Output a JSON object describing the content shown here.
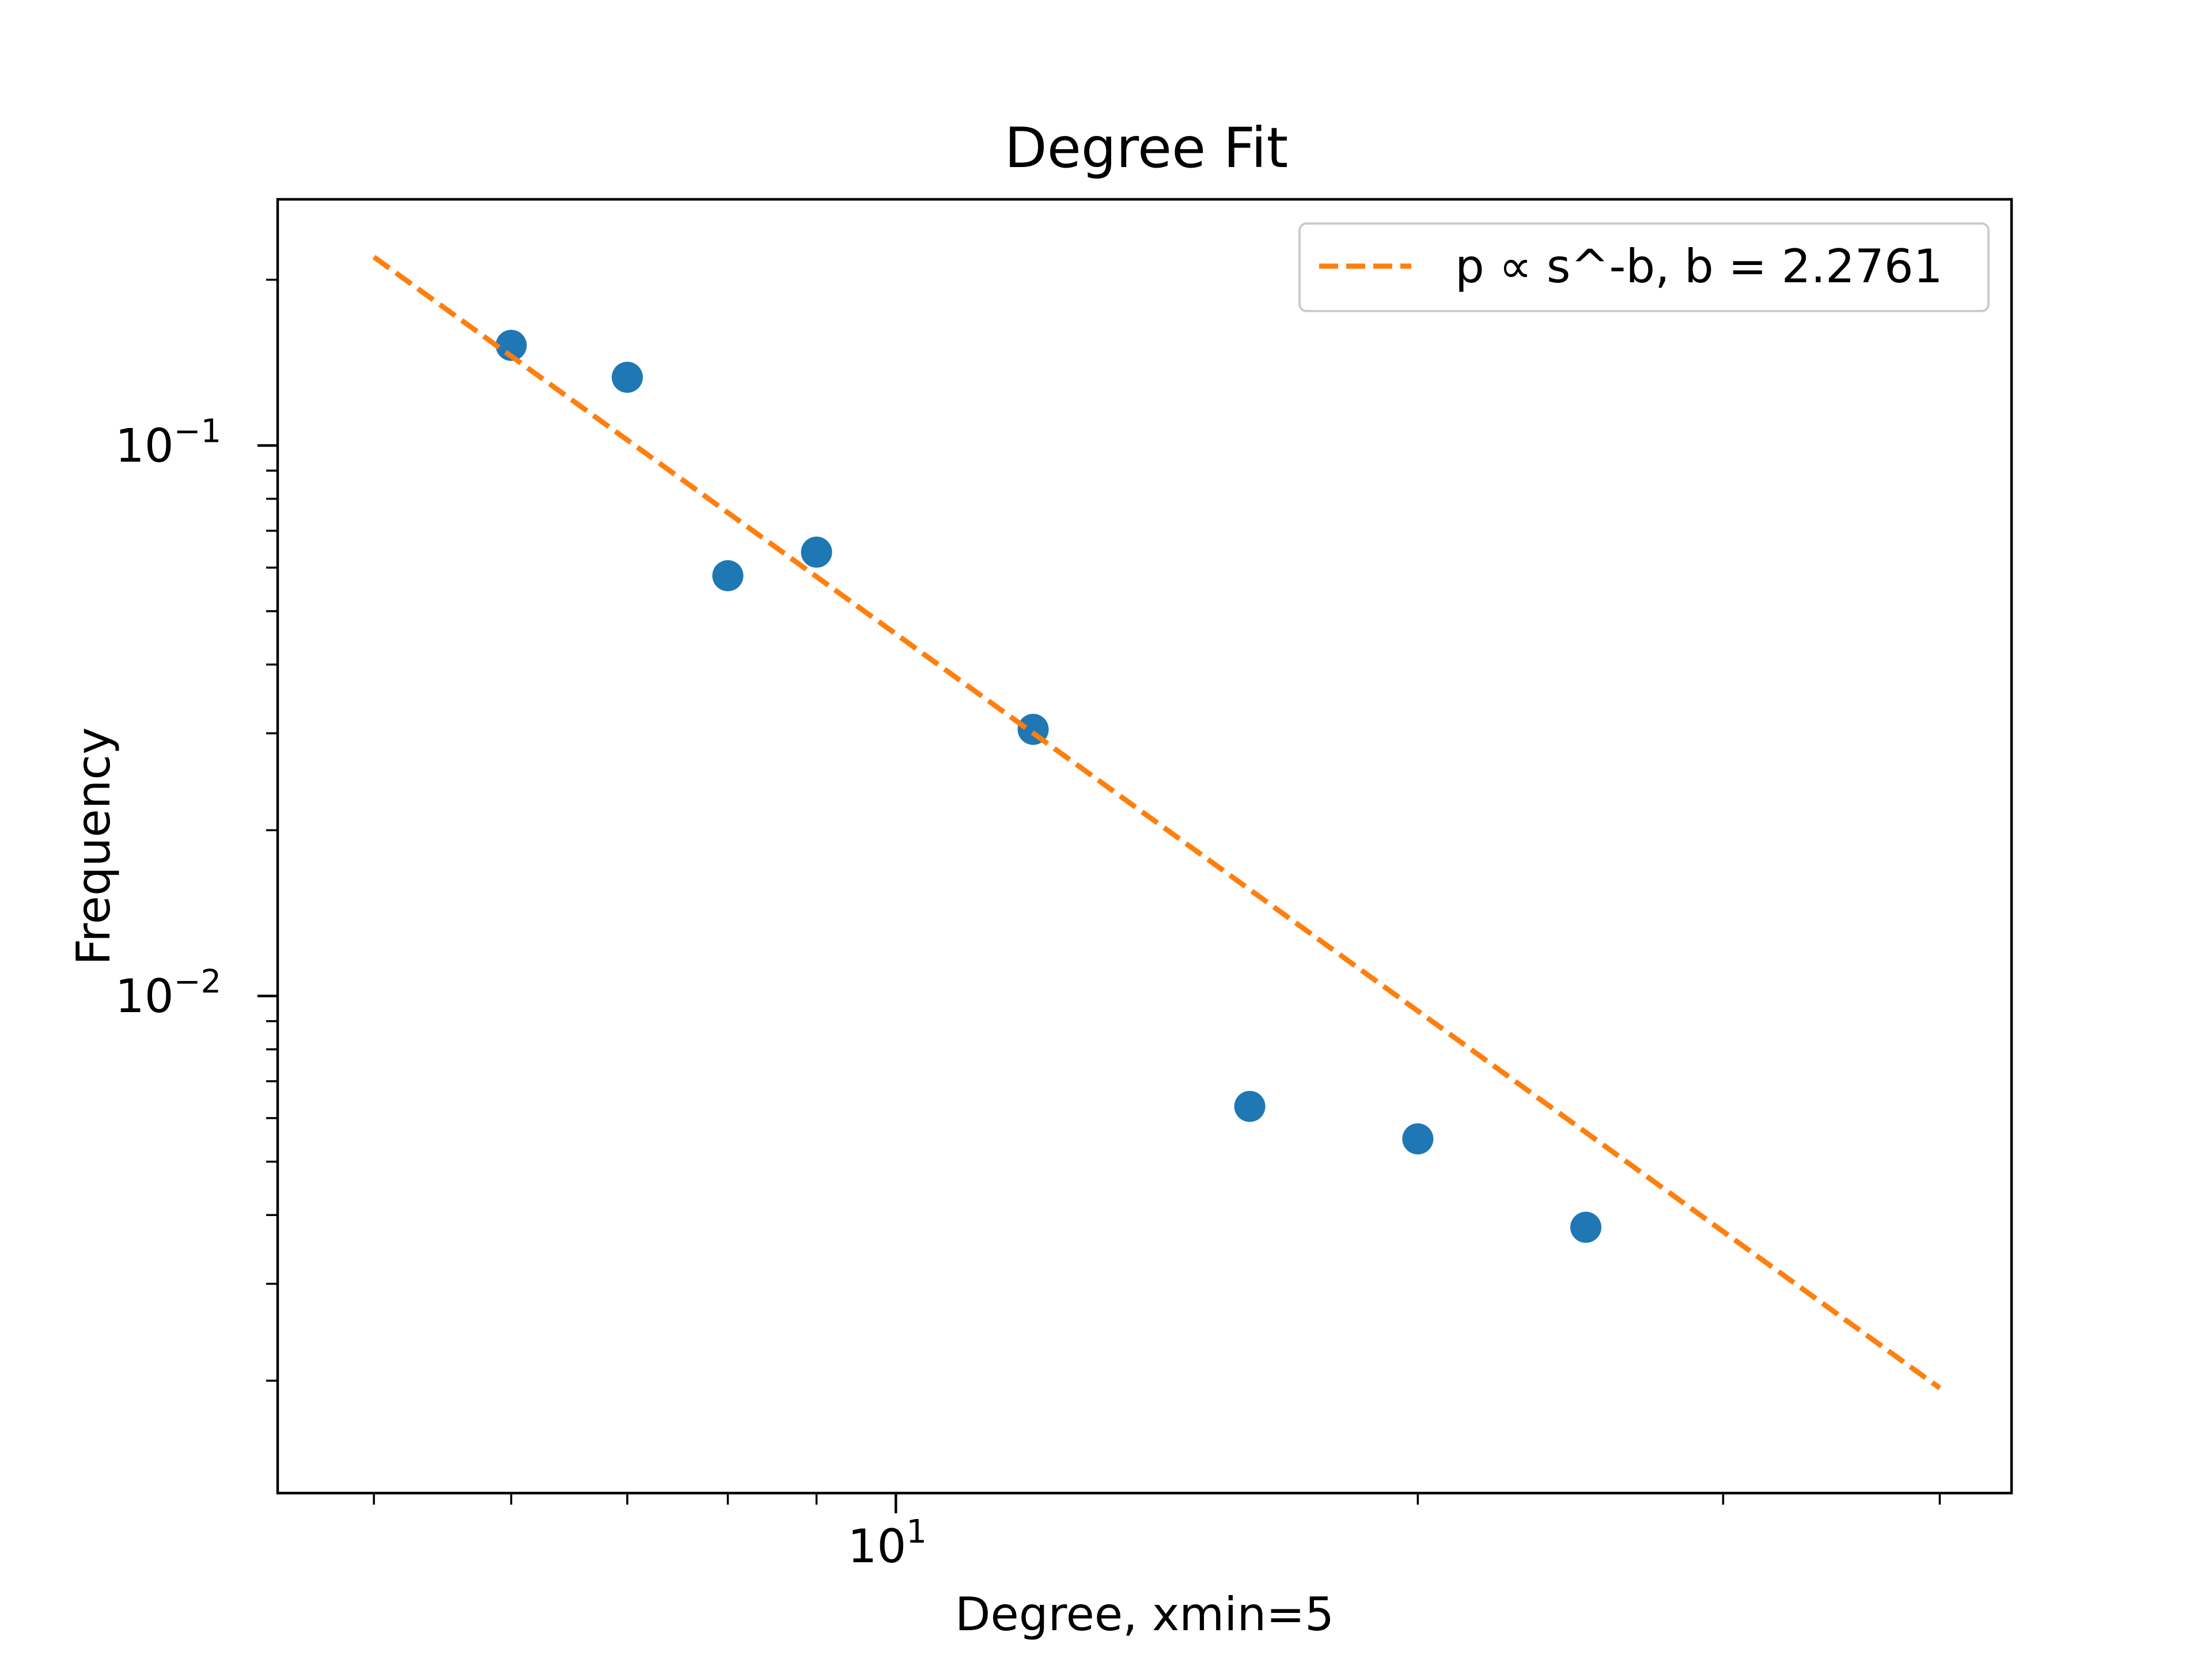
{
  "chart_data": {
    "type": "scatter",
    "title": "Degree Fit",
    "xlabel": "Degree, xmin=5",
    "ylabel": "Frequency",
    "xscale": "log",
    "yscale": "log",
    "xlim": [
      4.4,
      44
    ],
    "ylim": [
      0.00125,
      0.28
    ],
    "x_ticks": [
      {
        "value": 10,
        "base": "10",
        "exp": "1"
      }
    ],
    "y_ticks": [
      {
        "value": 0.1,
        "base": "10",
        "exp": "−1"
      },
      {
        "value": 0.01,
        "base": "10",
        "exp": "−2"
      }
    ],
    "series": [
      {
        "type": "scatter",
        "color": "#1f77b4",
        "x": [
          6,
          7,
          8,
          9,
          12,
          16,
          20,
          25
        ],
        "y": [
          0.152,
          0.133,
          0.058,
          0.064,
          0.0305,
          0.0063,
          0.0055,
          0.0038
        ]
      },
      {
        "type": "line",
        "style": "dashed",
        "color": "#ff7f0e",
        "name": "p ∝ s^-b, b = 2.2761",
        "x": [
          5,
          40
        ],
        "y": [
          0.22,
          0.00194
        ]
      }
    ],
    "legend": {
      "placement": "upper right",
      "entries": [
        "p ∝ s^-b, b = 2.2761"
      ]
    },
    "grid": false
  }
}
